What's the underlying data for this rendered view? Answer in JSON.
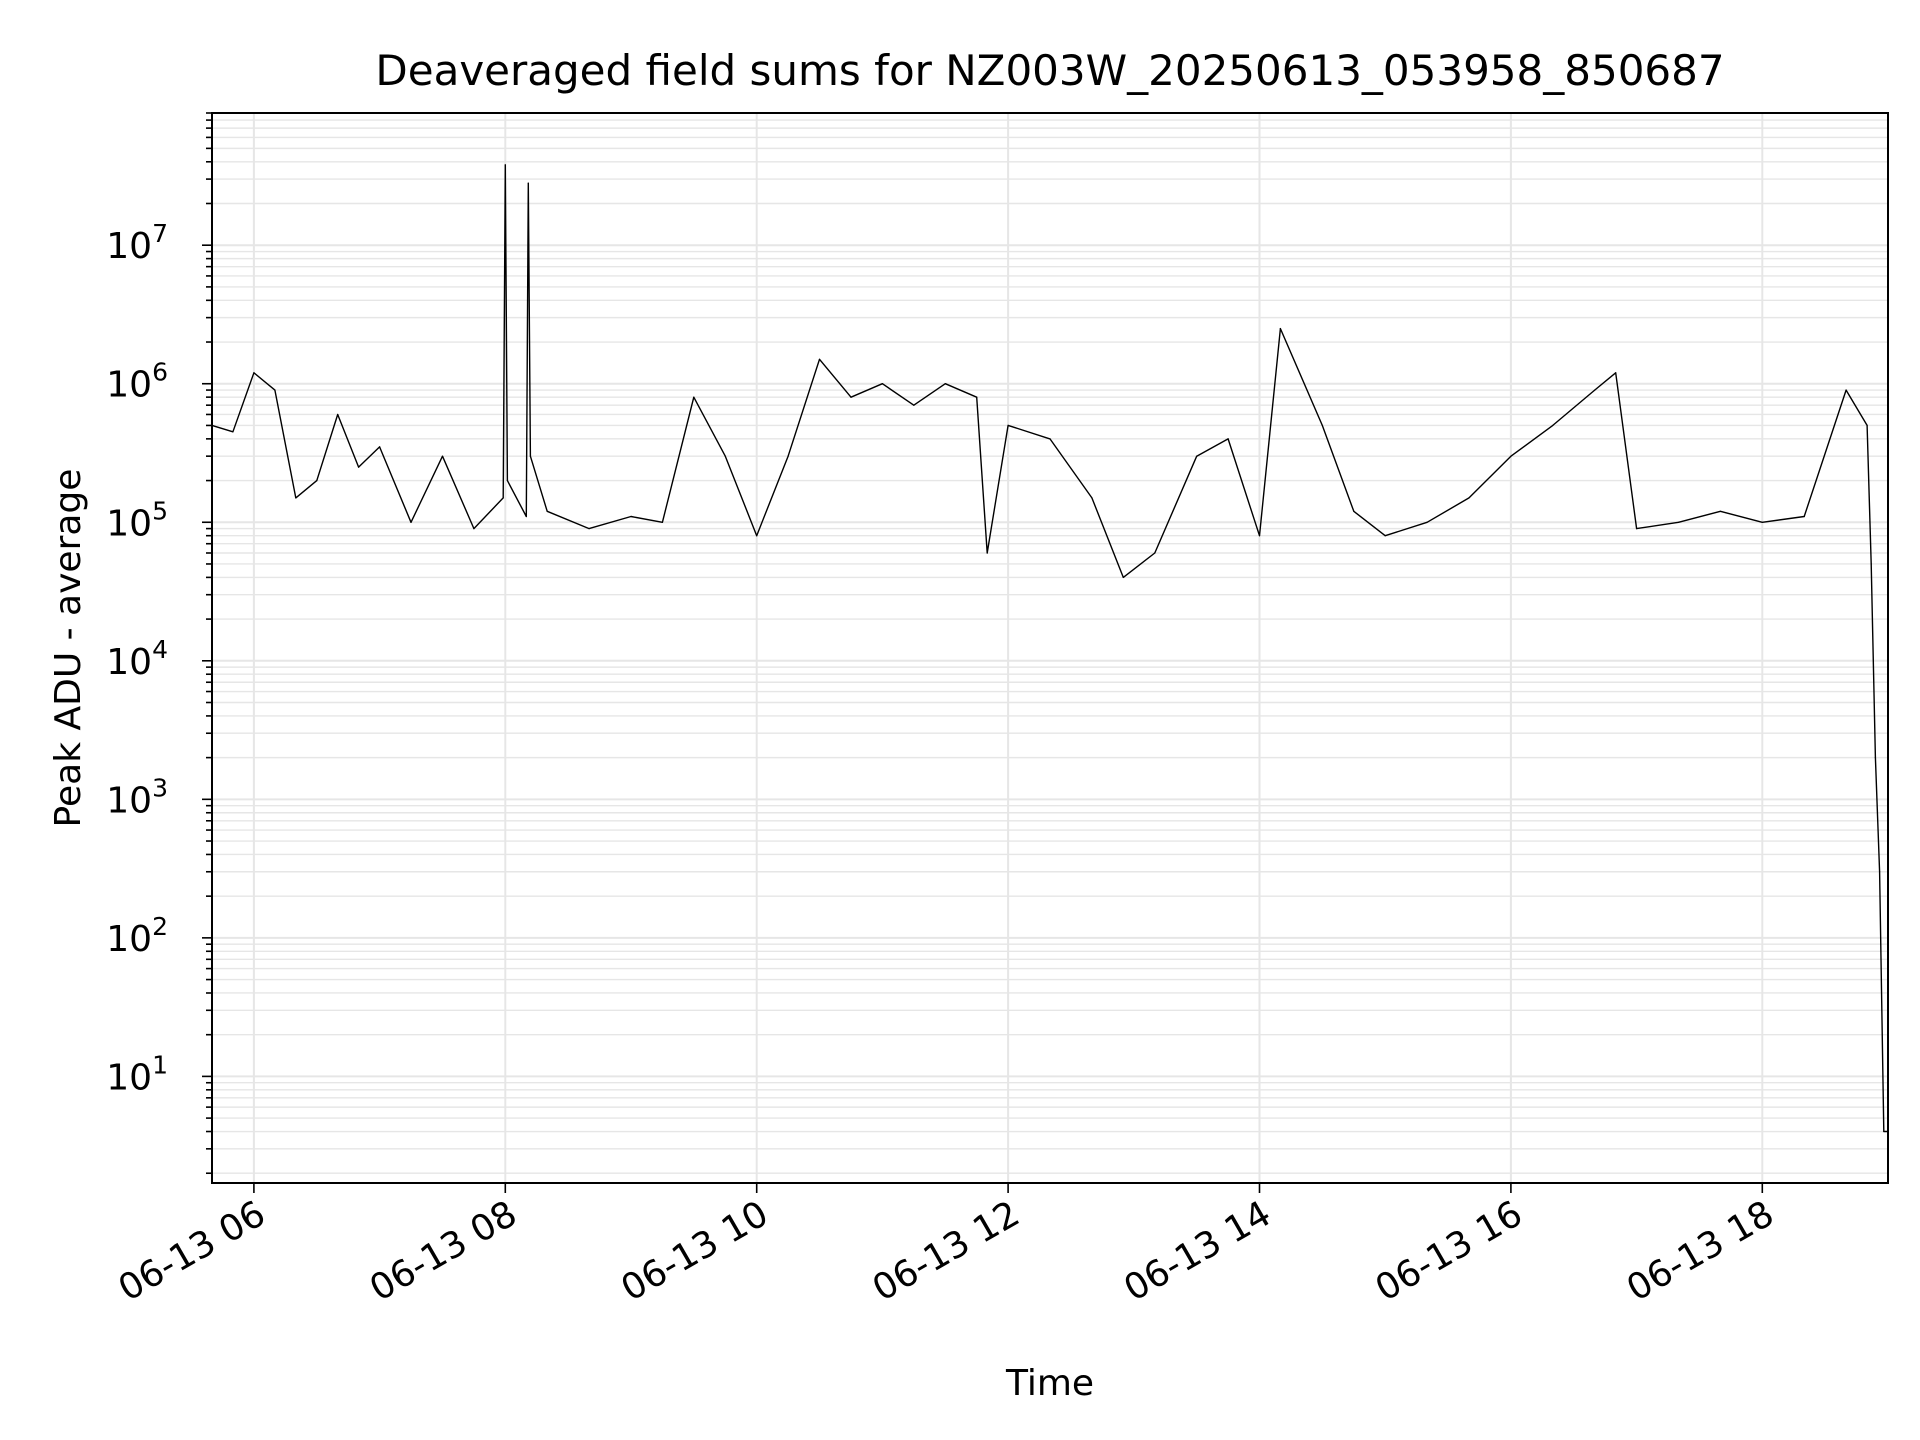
{
  "chart_data": {
    "type": "line",
    "title": "Deaveraged field sums for NZ003W_20250613_053958_850687",
    "xlabel": "Time",
    "ylabel": "Peak ADU - average",
    "yscale": "log",
    "ylim": [
      1.7,
      90000000
    ],
    "xlim": [
      "2025-06-13 05:40",
      "2025-06-13 19:00"
    ],
    "grid": true,
    "line_color": "#000000",
    "grid_color": "#e6e6e6",
    "x_ticks": [
      {
        "value": "2025-06-13 06:00",
        "label": "06-13 06"
      },
      {
        "value": "2025-06-13 08:00",
        "label": "06-13 08"
      },
      {
        "value": "2025-06-13 10:00",
        "label": "06-13 10"
      },
      {
        "value": "2025-06-13 12:00",
        "label": "06-13 12"
      },
      {
        "value": "2025-06-13 14:00",
        "label": "06-13 14"
      },
      {
        "value": "2025-06-13 16:00",
        "label": "06-13 16"
      },
      {
        "value": "2025-06-13 18:00",
        "label": "06-13 18"
      }
    ],
    "y_ticks": [
      {
        "value": 10,
        "base": "10",
        "exp": "1"
      },
      {
        "value": 100,
        "base": "10",
        "exp": "2"
      },
      {
        "value": 1000,
        "base": "10",
        "exp": "3"
      },
      {
        "value": 10000,
        "base": "10",
        "exp": "4"
      },
      {
        "value": 100000,
        "base": "10",
        "exp": "5"
      },
      {
        "value": 1000000,
        "base": "10",
        "exp": "6"
      },
      {
        "value": 10000000,
        "base": "10",
        "exp": "7"
      }
    ],
    "series": [
      {
        "x": [
          "2025-06-13 05:40",
          "2025-06-13 05:50",
          "2025-06-13 06:00",
          "2025-06-13 06:10",
          "2025-06-13 06:20",
          "2025-06-13 06:30",
          "2025-06-13 06:40",
          "2025-06-13 06:50",
          "2025-06-13 07:00",
          "2025-06-13 07:15",
          "2025-06-13 07:30",
          "2025-06-13 07:45",
          "2025-06-13 07:59",
          "2025-06-13 08:00",
          "2025-06-13 08:01",
          "2025-06-13 08:10",
          "2025-06-13 08:11",
          "2025-06-13 08:12",
          "2025-06-13 08:20",
          "2025-06-13 08:40",
          "2025-06-13 09:00",
          "2025-06-13 09:15",
          "2025-06-13 09:30",
          "2025-06-13 09:45",
          "2025-06-13 10:00",
          "2025-06-13 10:15",
          "2025-06-13 10:30",
          "2025-06-13 10:45",
          "2025-06-13 11:00",
          "2025-06-13 11:15",
          "2025-06-13 11:30",
          "2025-06-13 11:45",
          "2025-06-13 11:50",
          "2025-06-13 12:00",
          "2025-06-13 12:20",
          "2025-06-13 12:40",
          "2025-06-13 12:55",
          "2025-06-13 13:10",
          "2025-06-13 13:30",
          "2025-06-13 13:45",
          "2025-06-13 14:00",
          "2025-06-13 14:10",
          "2025-06-13 14:30",
          "2025-06-13 14:45",
          "2025-06-13 15:00",
          "2025-06-13 15:20",
          "2025-06-13 15:40",
          "2025-06-13 16:00",
          "2025-06-13 16:20",
          "2025-06-13 16:40",
          "2025-06-13 16:50",
          "2025-06-13 17:00",
          "2025-06-13 17:20",
          "2025-06-13 17:40",
          "2025-06-13 18:00",
          "2025-06-13 18:20",
          "2025-06-13 18:40",
          "2025-06-13 18:50",
          "2025-06-13 18:52",
          "2025-06-13 18:54",
          "2025-06-13 18:56",
          "2025-06-13 18:58",
          "2025-06-13 19:00"
        ],
        "y": [
          500000,
          450000,
          1200000,
          900000,
          150000,
          200000,
          600000,
          250000,
          350000,
          100000,
          300000,
          90000,
          150000,
          38000000,
          200000,
          110000,
          28000000,
          300000,
          120000,
          90000,
          110000,
          100000,
          800000,
          300000,
          80000,
          300000,
          1500000,
          800000,
          1000000,
          700000,
          1000000,
          800000,
          60000,
          500000,
          400000,
          150000,
          40000,
          60000,
          300000,
          400000,
          80000,
          2500000,
          500000,
          120000,
          80000,
          100000,
          150000,
          300000,
          500000,
          900000,
          1200000,
          90000,
          100000,
          120000,
          100000,
          110000,
          900000,
          500000,
          50000,
          2000,
          300,
          4,
          4
        ]
      }
    ]
  }
}
